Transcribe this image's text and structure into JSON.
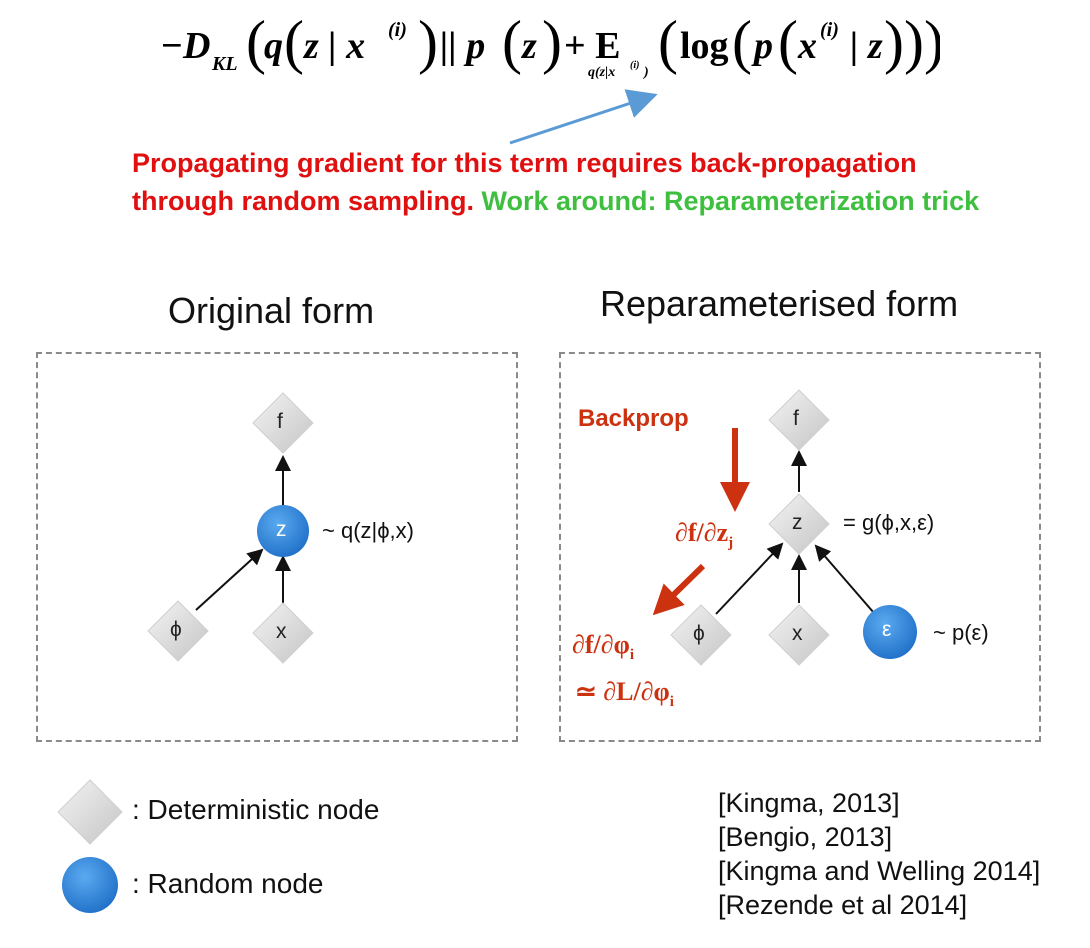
{
  "formula": {
    "neg_d": "−D",
    "kl": "KL",
    "q": "q",
    "z_given_x": "z | x",
    "sup_i": "(i)",
    "parallel_p": "|| p",
    "z": "z",
    "plus_e": "+ E",
    "subscript": "q(z|x",
    "log": "log",
    "p": "p",
    "x": "x",
    "given_z": "| z"
  },
  "note": {
    "line1": "Propagating gradient for this term requires back-propagation",
    "line2_red": "through random sampling.",
    "line2_green_1": "Work around:",
    "line2_green_2": "Reparameterization trick"
  },
  "original": {
    "title": "Original form",
    "nodes": {
      "f": "f",
      "z": "z",
      "phi": "ϕ",
      "x": "x"
    },
    "z_annotation": "~ q(z|ϕ,x)"
  },
  "reparam": {
    "title": "Reparameterised form",
    "nodes": {
      "f": "f",
      "z": "z",
      "phi": "ϕ",
      "x": "x",
      "eps": "ε"
    },
    "z_annotation": "= g(ϕ,x,ε)",
    "eps_annotation": "~ p(ε)",
    "backprop": "Backprop",
    "grad_z": "∂f/∂z",
    "grad_z_sub": "j",
    "grad_phi": "∂f/∂φ",
    "grad_phi_sub": "i",
    "approx": "≃ ∂L/∂φ",
    "approx_sub": "i"
  },
  "legend": {
    "deterministic": ": Deterministic node",
    "random": ": Random node"
  },
  "references": [
    "[Kingma, 2013]",
    "[Bengio, 2013]",
    "[Kingma and Welling 2014]",
    "[Rezende et al 2014]"
  ],
  "colors": {
    "note_red": "#e01010",
    "note_green": "#3fbf3f",
    "backprop_red": "#cc3210",
    "random_node_blue": "#2a7fd8",
    "arrow_blue": "#5b9bd5"
  }
}
